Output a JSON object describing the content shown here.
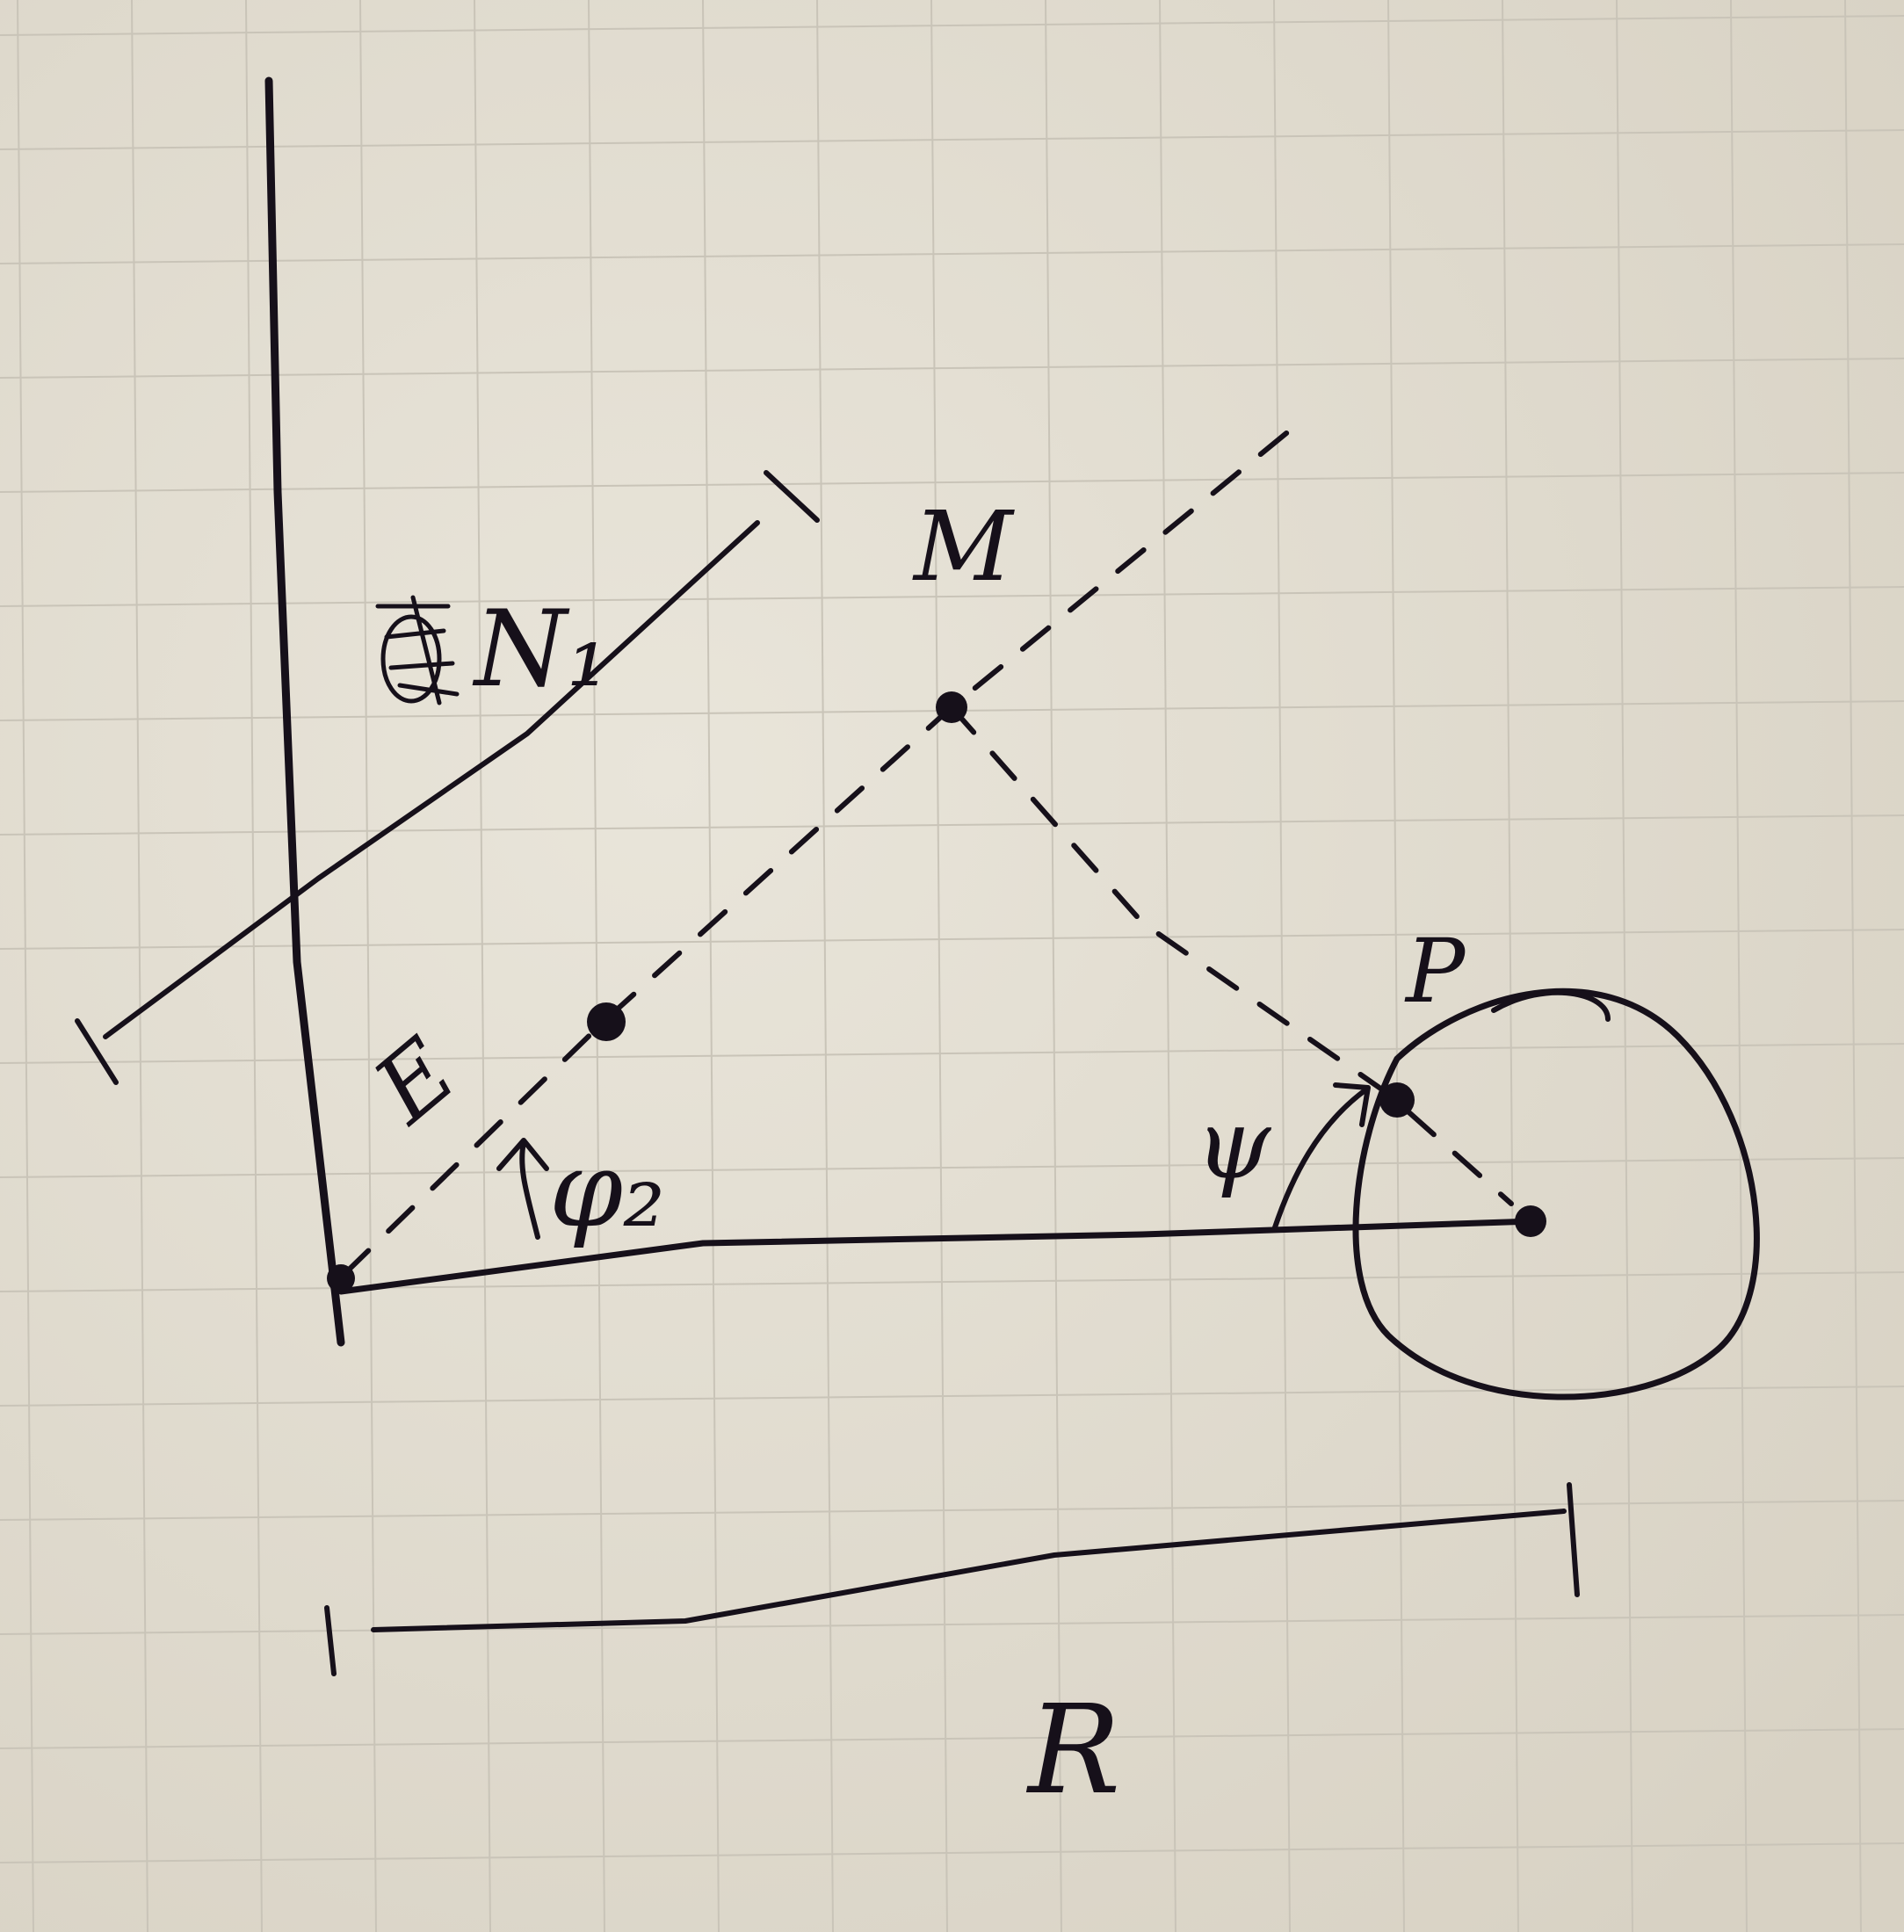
{
  "labels": {
    "n1": "N₁",
    "m": "M",
    "e": "E",
    "phi2": "φ₂",
    "psi": "ψ",
    "p": "P",
    "r": "R"
  }
}
